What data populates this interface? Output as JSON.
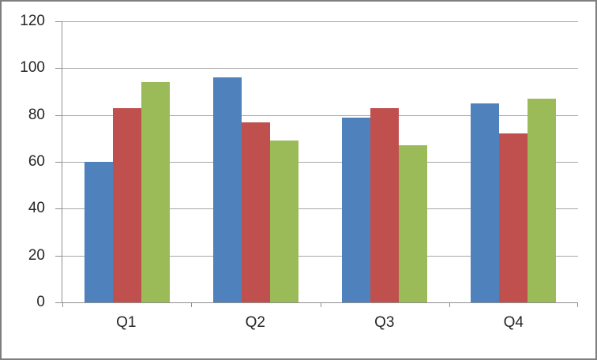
{
  "chart": {
    "background_color": "#ffffff",
    "frame_border_color": "#7f7f7f",
    "gridline_color": "#a6a6a6",
    "axis_color": "#8e8e8e",
    "label_color": "#262626"
  },
  "chart_data": {
    "type": "bar",
    "title": "",
    "xlabel": "",
    "ylabel": "",
    "categories": [
      "Q1",
      "Q2",
      "Q3",
      "Q4"
    ],
    "series": [
      {
        "color": "#4F81BD",
        "values": [
          60,
          96,
          79,
          85
        ]
      },
      {
        "color": "#C0504D",
        "values": [
          83,
          77,
          83,
          72
        ]
      },
      {
        "color": "#9BBB59",
        "values": [
          94,
          69,
          67,
          87
        ]
      }
    ],
    "ylim": [
      0,
      120
    ],
    "yticks": [
      0,
      20,
      40,
      60,
      80,
      100,
      120
    ],
    "grid": true,
    "legend_position": "none"
  }
}
